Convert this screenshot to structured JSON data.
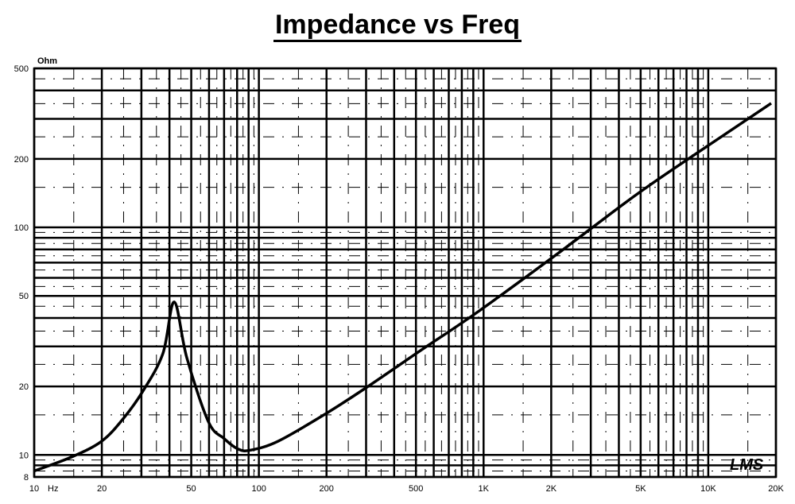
{
  "chart_data": {
    "type": "line",
    "title": "Impedance vs Freq",
    "ylabel": "Ohm",
    "xlabel": "Hz",
    "xscale": "log",
    "yscale": "log",
    "xlim": [
      10,
      20000
    ],
    "ylim": [
      8,
      500
    ],
    "grid": true,
    "x_ticks": [
      {
        "v": 10,
        "label": "10"
      },
      {
        "v": 20,
        "label": "20"
      },
      {
        "v": 50,
        "label": "50"
      },
      {
        "v": 100,
        "label": "100"
      },
      {
        "v": 200,
        "label": "200"
      },
      {
        "v": 500,
        "label": "500"
      },
      {
        "v": 1000,
        "label": "1K"
      },
      {
        "v": 2000,
        "label": "2K"
      },
      {
        "v": 5000,
        "label": "5K"
      },
      {
        "v": 10000,
        "label": "10K"
      },
      {
        "v": 20000,
        "label": "20K"
      }
    ],
    "y_ticks": [
      {
        "v": 8,
        "label": "8"
      },
      {
        "v": 10,
        "label": "10"
      },
      {
        "v": 20,
        "label": "20"
      },
      {
        "v": 50,
        "label": "50"
      },
      {
        "v": 100,
        "label": "100"
      },
      {
        "v": 200,
        "label": "200"
      },
      {
        "v": 500,
        "label": "500"
      }
    ],
    "series": [
      {
        "color": "#000000",
        "x": [
          10,
          14.7,
          20,
          25,
          30.5,
          37.4,
          42,
          47.8,
          59.6,
          70,
          81,
          92,
          122,
          199,
          299,
          528,
          935,
          2110,
          4770,
          9150,
          19050
        ],
        "y": [
          8.5,
          9.8,
          11.5,
          14.5,
          19.1,
          27.9,
          47,
          26.7,
          14,
          11.8,
          10.6,
          10.5,
          11.5,
          15.2,
          19.7,
          28.9,
          42.3,
          76,
          139,
          216,
          351
        ]
      }
    ],
    "watermark": "LMS"
  }
}
